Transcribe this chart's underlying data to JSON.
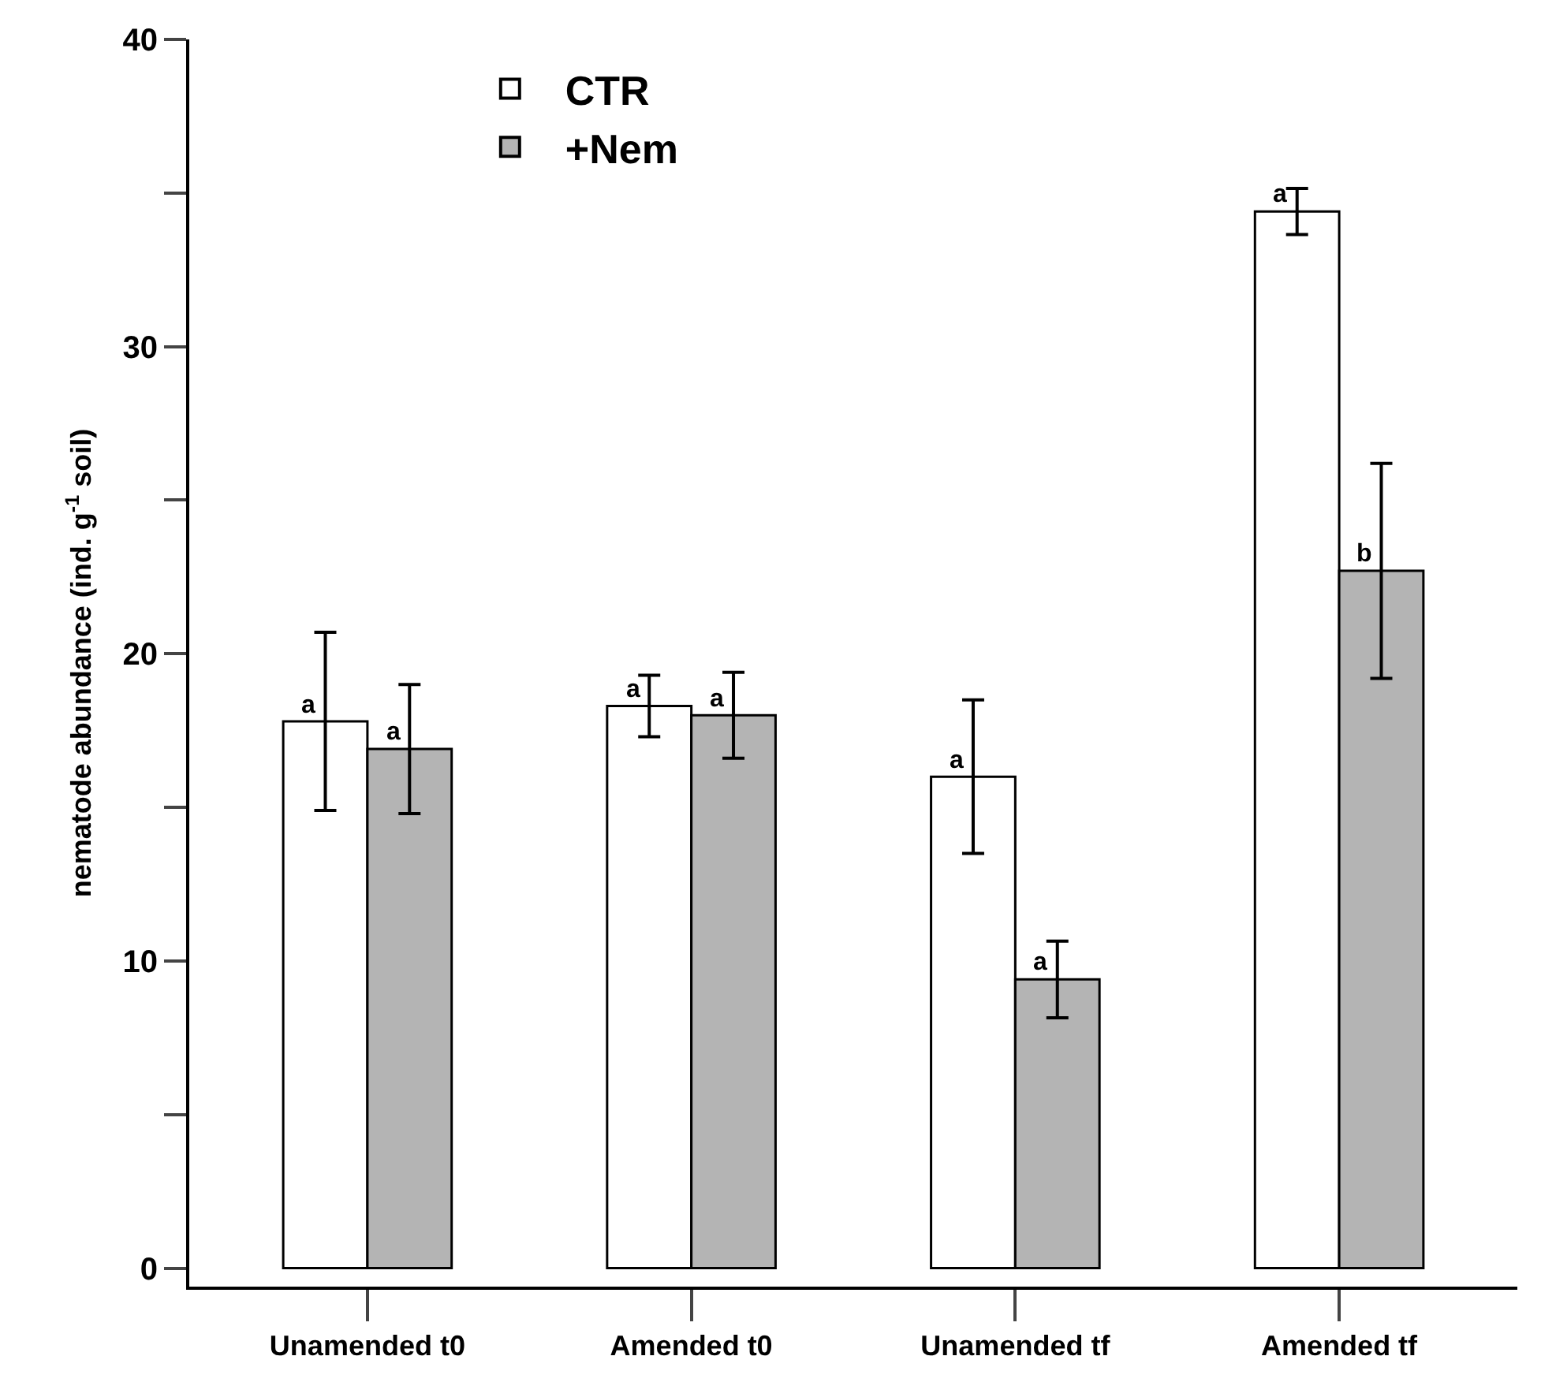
{
  "chart_data": {
    "type": "bar",
    "ylabel": "nematode abundance (ind. g$^{-1}$ soil)",
    "categories": [
      "Unamended t0",
      "Amended t0",
      "Unamended tf",
      "Amended tf"
    ],
    "series": [
      {
        "name": "CTR",
        "color": "#ffffff",
        "values": [
          17.8,
          18.3,
          16.0,
          34.4
        ],
        "errors": [
          2.9,
          1.0,
          2.5,
          0.75
        ],
        "value_labels": [
          "a",
          "a",
          "a",
          "a"
        ]
      },
      {
        "name": "+Nem",
        "color": "#b4b4b4",
        "values": [
          16.9,
          18.0,
          9.4,
          22.7
        ],
        "errors": [
          2.1,
          1.4,
          1.25,
          3.5
        ],
        "value_labels": [
          "a",
          "a",
          "a",
          "b"
        ]
      }
    ],
    "ylim": [
      -0.6,
      40
    ],
    "yticks": [
      0,
      {
        "value": 5,
        "label": null
      },
      10,
      {
        "value": 15,
        "label": null
      },
      20,
      {
        "value": 25,
        "label": null
      },
      30,
      {
        "value": 35,
        "label": null
      },
      40
    ],
    "legend": "top left"
  }
}
